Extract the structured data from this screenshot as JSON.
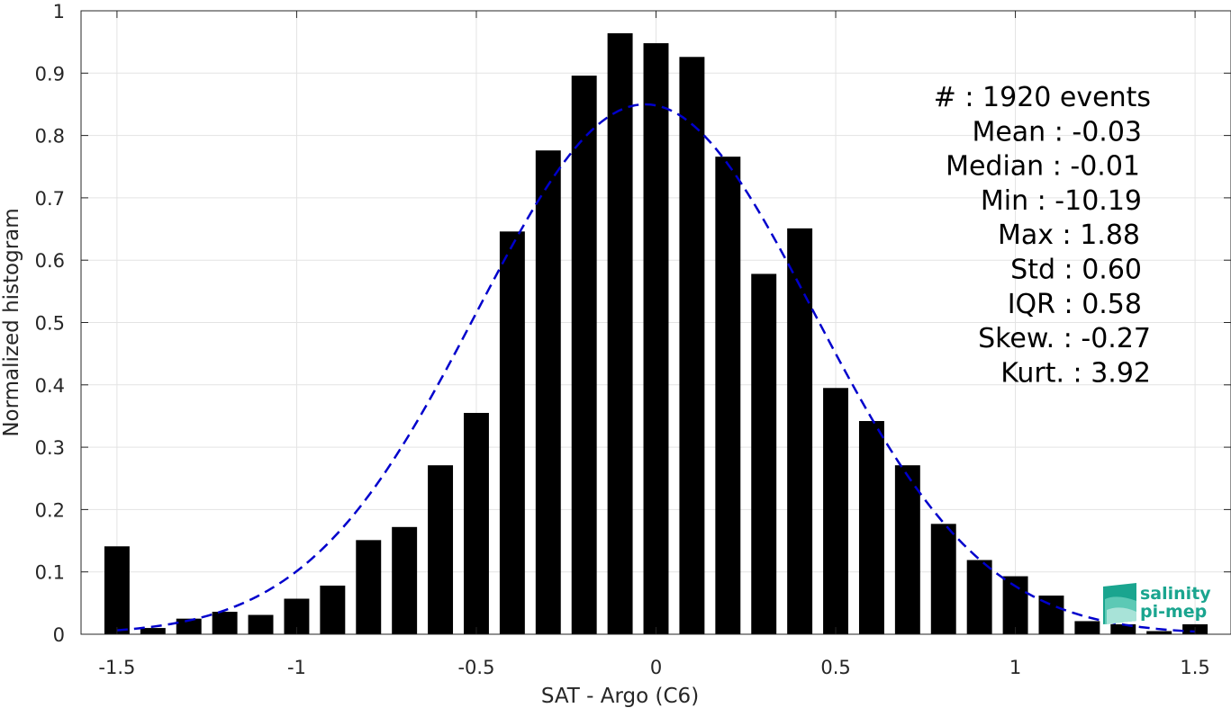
{
  "chart_data": {
    "type": "bar",
    "xlabel": "SAT - Argo (C6)",
    "ylabel": "Normalized histogram",
    "xlim": [
      -1.6,
      1.6
    ],
    "ylim": [
      0,
      1
    ],
    "x_ticks": [
      -1.5,
      -1,
      -0.5,
      0,
      0.5,
      1,
      1.5
    ],
    "x_tick_labels": [
      "-1.5",
      "-1",
      "-0.5",
      "0",
      "0.5",
      "1",
      "1.5"
    ],
    "y_ticks": [
      0,
      0.1,
      0.2,
      0.3,
      0.4,
      0.5,
      0.6,
      0.7,
      0.8,
      0.9,
      1
    ],
    "y_tick_labels": [
      "0",
      "0.1",
      "0.2",
      "0.3",
      "0.4",
      "0.5",
      "0.6",
      "0.7",
      "0.8",
      "0.9",
      "1"
    ],
    "grid": true,
    "bar_width": 0.07,
    "bar_color": "#000000",
    "x": [
      -1.5,
      -1.4,
      -1.3,
      -1.2,
      -1.1,
      -1.0,
      -0.9,
      -0.8,
      -0.7,
      -0.6,
      -0.5,
      -0.4,
      -0.3,
      -0.2,
      -0.1,
      0.0,
      0.1,
      0.2,
      0.3,
      0.4,
      0.5,
      0.6,
      0.7,
      0.8,
      0.9,
      1.0,
      1.1,
      1.2,
      1.3,
      1.4,
      1.5
    ],
    "values": [
      0.141,
      0.01,
      0.025,
      0.036,
      0.031,
      0.057,
      0.078,
      0.151,
      0.172,
      0.271,
      0.355,
      0.646,
      0.776,
      0.896,
      0.964,
      0.948,
      0.926,
      0.766,
      0.578,
      0.651,
      0.395,
      0.342,
      0.271,
      0.177,
      0.119,
      0.093,
      0.062,
      0.021,
      0.016,
      0.005,
      0.016
    ],
    "fit_curve": {
      "type": "gaussian",
      "mean": -0.03,
      "std": 0.47,
      "peak": 0.85,
      "x_range": [
        -1.5,
        1.5
      ],
      "color": "#0000cc",
      "style": "dashed"
    },
    "annotations": [
      "#  : 1920 events",
      "Mean : -0.03",
      "Median : -0.01",
      "Min : -10.19",
      "Max : 1.88",
      "Std : 0.60",
      "IQR : 0.58",
      "Skew. : -0.27",
      "Kurt. : 3.92"
    ],
    "annotation_placement": "top-right"
  },
  "logo": {
    "line1": "salinity",
    "line2": "pi-mep",
    "color": "#1aa58f"
  }
}
